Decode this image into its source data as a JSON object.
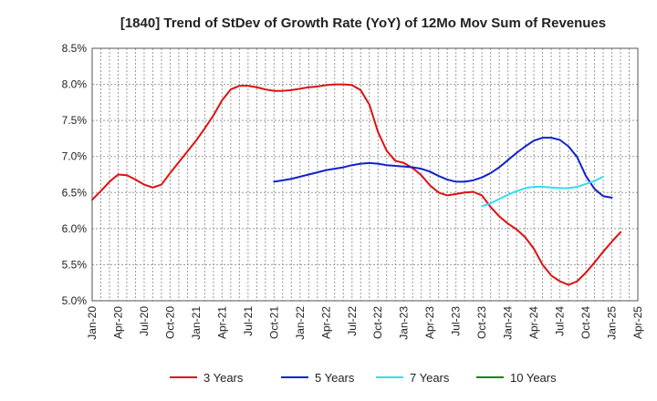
{
  "chart_data": {
    "type": "line",
    "title": "[1840]  Trend of StDev of Growth Rate (YoY) of 12Mo Mov Sum of Revenues",
    "xlabel": "",
    "ylabel": "",
    "ylim": [
      5.0,
      8.5
    ],
    "yticks": [
      5.0,
      5.5,
      6.0,
      6.5,
      7.0,
      7.5,
      8.0,
      8.5
    ],
    "ytick_labels": [
      "5.0%",
      "5.5%",
      "6.0%",
      "6.5%",
      "7.0%",
      "7.5%",
      "8.0%",
      "8.5%"
    ],
    "xtick_labels": [
      "Jan-20",
      "Apr-20",
      "Jul-20",
      "Oct-20",
      "Jan-21",
      "Apr-21",
      "Jul-21",
      "Oct-21",
      "Jan-22",
      "Apr-22",
      "Jul-22",
      "Oct-22",
      "Jan-23",
      "Apr-23",
      "Jul-23",
      "Oct-23",
      "Jan-24",
      "Apr-24",
      "Jul-24",
      "Oct-24",
      "Jan-25",
      "Apr-25"
    ],
    "grid": true,
    "legend_position": "bottom",
    "series": [
      {
        "name": "3 Years",
        "color": "#dd1111",
        "start_month_index": 0,
        "values": [
          6.4,
          6.52,
          6.65,
          6.75,
          6.74,
          6.68,
          6.61,
          6.57,
          6.61,
          6.77,
          6.92,
          7.07,
          7.22,
          7.39,
          7.57,
          7.78,
          7.93,
          7.98,
          7.98,
          7.96,
          7.93,
          7.91,
          7.91,
          7.92,
          7.94,
          7.96,
          7.97,
          7.99,
          8.0,
          8.0,
          7.99,
          7.92,
          7.72,
          7.34,
          7.08,
          6.94,
          6.91,
          6.84,
          6.74,
          6.6,
          6.5,
          6.46,
          6.48,
          6.5,
          6.51,
          6.46,
          6.3,
          6.17,
          6.07,
          5.99,
          5.88,
          5.72,
          5.5,
          5.35,
          5.27,
          5.22,
          5.27,
          5.39,
          5.53,
          5.68,
          5.82,
          5.95
        ]
      },
      {
        "name": "5 Years",
        "color": "#1122cc",
        "start_month_index": 21,
        "values": [
          6.65,
          6.67,
          6.69,
          6.72,
          6.75,
          6.78,
          6.81,
          6.83,
          6.85,
          6.88,
          6.9,
          6.91,
          6.9,
          6.88,
          6.87,
          6.86,
          6.85,
          6.83,
          6.79,
          6.73,
          6.68,
          6.65,
          6.65,
          6.67,
          6.71,
          6.77,
          6.85,
          6.95,
          7.05,
          7.14,
          7.22,
          7.26,
          7.26,
          7.23,
          7.14,
          6.99,
          6.73,
          6.55,
          6.45,
          6.43
        ]
      },
      {
        "name": "7 Years",
        "color": "#33ddee",
        "start_month_index": 45,
        "values": [
          6.31,
          6.35,
          6.41,
          6.47,
          6.52,
          6.56,
          6.58,
          6.58,
          6.57,
          6.56,
          6.56,
          6.58,
          6.62,
          6.66,
          6.72
        ]
      },
      {
        "name": "10 Years",
        "color": "#118811",
        "start_month_index": 0,
        "values": []
      }
    ]
  }
}
